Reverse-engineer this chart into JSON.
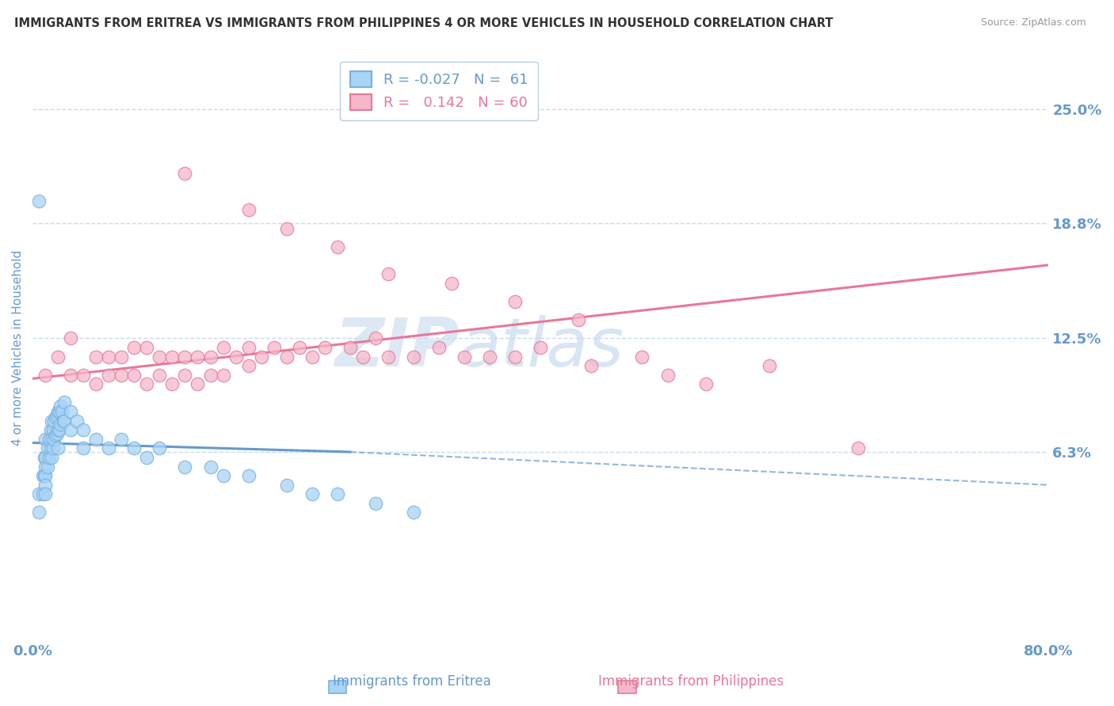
{
  "title": "IMMIGRANTS FROM ERITREA VS IMMIGRANTS FROM PHILIPPINES 4 OR MORE VEHICLES IN HOUSEHOLD CORRELATION CHART",
  "source": "Source: ZipAtlas.com",
  "ylabel": "4 or more Vehicles in Household",
  "xlim": [
    0.0,
    0.8
  ],
  "ylim": [
    -0.04,
    0.28
  ],
  "ytick_labels": [
    "25.0%",
    "18.8%",
    "12.5%",
    "6.3%"
  ],
  "ytick_vals": [
    0.25,
    0.188,
    0.125,
    0.063
  ],
  "hgrid_vals": [
    0.25,
    0.188,
    0.125,
    0.063
  ],
  "color_eritrea": "#a8d4f5",
  "color_eritrea_edge": "#7ab0e0",
  "color_philippines": "#f5b8cb",
  "color_philippines_edge": "#e87898",
  "color_eritrea_trendline": "#6699cc",
  "color_philippines_trendline": "#e87898",
  "color_axis_text": "#6699cc",
  "color_grid": "#c8daf0",
  "eritrea_x": [
    0.005,
    0.005,
    0.008,
    0.008,
    0.009,
    0.009,
    0.01,
    0.01,
    0.01,
    0.01,
    0.01,
    0.01,
    0.012,
    0.012,
    0.013,
    0.013,
    0.014,
    0.014,
    0.015,
    0.015,
    0.015,
    0.016,
    0.016,
    0.017,
    0.017,
    0.018,
    0.018,
    0.019,
    0.019,
    0.02,
    0.02,
    0.02,
    0.021,
    0.021,
    0.022,
    0.022,
    0.023,
    0.024,
    0.025,
    0.025,
    0.03,
    0.03,
    0.035,
    0.04,
    0.04,
    0.05,
    0.06,
    0.07,
    0.08,
    0.09,
    0.1,
    0.12,
    0.14,
    0.15,
    0.17,
    0.2,
    0.22,
    0.24,
    0.27,
    0.3,
    0.005
  ],
  "eritrea_y": [
    0.04,
    0.03,
    0.05,
    0.04,
    0.06,
    0.05,
    0.07,
    0.06,
    0.055,
    0.05,
    0.045,
    0.04,
    0.065,
    0.055,
    0.07,
    0.06,
    0.075,
    0.065,
    0.08,
    0.07,
    0.06,
    0.075,
    0.065,
    0.08,
    0.07,
    0.082,
    0.072,
    0.083,
    0.073,
    0.085,
    0.075,
    0.065,
    0.085,
    0.075,
    0.088,
    0.078,
    0.085,
    0.08,
    0.09,
    0.08,
    0.085,
    0.075,
    0.08,
    0.075,
    0.065,
    0.07,
    0.065,
    0.07,
    0.065,
    0.06,
    0.065,
    0.055,
    0.055,
    0.05,
    0.05,
    0.045,
    0.04,
    0.04,
    0.035,
    0.03,
    0.2
  ],
  "philippines_x": [
    0.01,
    0.02,
    0.03,
    0.03,
    0.04,
    0.05,
    0.05,
    0.06,
    0.06,
    0.07,
    0.07,
    0.08,
    0.08,
    0.09,
    0.09,
    0.1,
    0.1,
    0.11,
    0.11,
    0.12,
    0.12,
    0.13,
    0.13,
    0.14,
    0.14,
    0.15,
    0.15,
    0.16,
    0.17,
    0.17,
    0.18,
    0.19,
    0.2,
    0.21,
    0.22,
    0.23,
    0.25,
    0.26,
    0.27,
    0.28,
    0.3,
    0.32,
    0.34,
    0.36,
    0.38,
    0.4,
    0.44,
    0.48,
    0.53,
    0.58,
    0.12,
    0.17,
    0.2,
    0.24,
    0.28,
    0.33,
    0.38,
    0.43,
    0.5,
    0.65
  ],
  "philippines_y": [
    0.105,
    0.115,
    0.105,
    0.125,
    0.105,
    0.115,
    0.1,
    0.115,
    0.105,
    0.115,
    0.105,
    0.12,
    0.105,
    0.12,
    0.1,
    0.115,
    0.105,
    0.115,
    0.1,
    0.115,
    0.105,
    0.115,
    0.1,
    0.115,
    0.105,
    0.12,
    0.105,
    0.115,
    0.12,
    0.11,
    0.115,
    0.12,
    0.115,
    0.12,
    0.115,
    0.12,
    0.12,
    0.115,
    0.125,
    0.115,
    0.115,
    0.12,
    0.115,
    0.115,
    0.115,
    0.12,
    0.11,
    0.115,
    0.1,
    0.11,
    0.215,
    0.195,
    0.185,
    0.175,
    0.16,
    0.155,
    0.145,
    0.135,
    0.105,
    0.065
  ],
  "eritrea_trend_x0": 0.0,
  "eritrea_trend_x1": 0.3,
  "eritrea_trend_solid_x1": 0.25,
  "philippines_trend_x0": 0.0,
  "philippines_trend_x1": 0.8,
  "philippines_trend_y0": 0.103,
  "philippines_trend_y1": 0.165
}
